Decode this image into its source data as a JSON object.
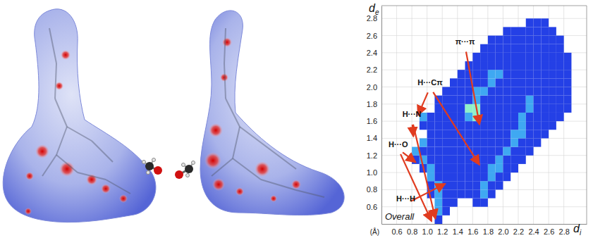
{
  "chart_data": {
    "type": "heatmap",
    "title": "Overall",
    "xlabel": "di",
    "ylabel": "de",
    "unit": "(Å)",
    "xlim": [
      0.4,
      3.1
    ],
    "ylim": [
      0.4,
      2.95
    ],
    "xticks": [
      0.6,
      0.8,
      {
        "value": 1,
        "label": "1.0"
      },
      1.2,
      1.4,
      1.6,
      1.8,
      {
        "value": 2,
        "label": "2.0"
      },
      2.2,
      2.4,
      2.6,
      2.8
    ],
    "yticks": [
      0.6,
      0.8,
      {
        "value": 1,
        "label": "1.0"
      },
      1.2,
      1.4,
      1.6,
      1.8,
      {
        "value": 2,
        "label": "2.0"
      },
      2.2,
      2.4,
      2.6,
      2.8
    ],
    "grid": true,
    "tick_labels": true,
    "x_bins": [
      0.7,
      0.8,
      0.9,
      1.0,
      1.1,
      1.2,
      1.3,
      1.4,
      1.5,
      1.6,
      1.7,
      1.8,
      1.9,
      2.0,
      2.1,
      2.2,
      2.3,
      2.4,
      2.5,
      2.6,
      2.7,
      2.8,
      2.9
    ],
    "y_bins": [
      0.4,
      0.5,
      0.6,
      0.7,
      0.8,
      0.9,
      1.0,
      1.1,
      1.2,
      1.3,
      1.4,
      1.5,
      1.6,
      1.7,
      1.8,
      1.9,
      2.0,
      2.1,
      2.2,
      2.3,
      2.4,
      2.5,
      2.6,
      2.7,
      2.8
    ],
    "cells": [
      [
        0,
        0,
        0,
        0,
        1,
        0,
        0,
        0,
        0,
        0,
        0,
        0,
        0,
        0,
        0,
        0,
        0,
        0,
        0,
        0,
        0,
        0
      ],
      [
        0,
        0,
        0,
        0,
        2,
        1,
        0,
        0,
        0,
        0,
        0,
        0,
        0,
        0,
        0,
        0,
        0,
        0,
        0,
        0,
        0,
        0
      ],
      [
        0,
        0,
        0,
        0,
        2,
        1,
        1,
        0,
        0,
        1,
        1,
        0,
        0,
        0,
        0,
        0,
        0,
        0,
        0,
        0,
        0,
        0
      ],
      [
        0,
        0,
        0,
        1,
        2,
        1,
        1,
        1,
        1,
        1,
        2,
        1,
        0,
        0,
        0,
        0,
        0,
        0,
        0,
        0,
        0,
        0
      ],
      [
        0,
        0,
        0,
        1,
        2,
        1,
        1,
        1,
        1,
        1,
        2,
        1,
        1,
        0,
        0,
        0,
        0,
        0,
        0,
        0,
        0,
        0
      ],
      [
        0,
        0,
        0,
        2,
        1,
        1,
        1,
        1,
        1,
        1,
        1,
        2,
        1,
        1,
        0,
        0,
        0,
        0,
        0,
        0,
        0,
        0
      ],
      [
        0,
        0,
        1,
        2,
        1,
        1,
        1,
        1,
        1,
        1,
        1,
        2,
        2,
        1,
        1,
        0,
        0,
        0,
        0,
        0,
        0,
        0
      ],
      [
        0,
        1,
        2,
        1,
        1,
        1,
        1,
        1,
        1,
        1,
        1,
        1,
        2,
        1,
        1,
        1,
        0,
        0,
        0,
        0,
        0,
        0
      ],
      [
        0,
        2,
        1,
        1,
        1,
        1,
        1,
        1,
        1,
        1,
        1,
        1,
        1,
        2,
        1,
        1,
        1,
        0,
        0,
        0,
        0,
        0
      ],
      [
        0,
        0,
        2,
        1,
        1,
        1,
        1,
        1,
        1,
        1,
        1,
        1,
        1,
        1,
        2,
        1,
        1,
        1,
        0,
        0,
        0,
        0
      ],
      [
        0,
        0,
        0,
        1,
        1,
        1,
        1,
        1,
        1,
        1,
        1,
        1,
        1,
        1,
        2,
        2,
        1,
        1,
        1,
        0,
        0,
        0
      ],
      [
        0,
        0,
        1,
        1,
        1,
        1,
        1,
        1,
        1,
        1,
        1,
        1,
        1,
        1,
        1,
        2,
        1,
        1,
        1,
        1,
        0,
        0
      ],
      [
        0,
        0,
        2,
        1,
        1,
        1,
        1,
        1,
        2,
        3,
        1,
        1,
        1,
        1,
        1,
        2,
        1,
        1,
        1,
        1,
        1,
        0
      ],
      [
        0,
        0,
        0,
        0,
        1,
        1,
        1,
        1,
        3,
        3,
        1,
        1,
        1,
        1,
        1,
        1,
        2,
        1,
        1,
        1,
        1,
        1
      ],
      [
        0,
        0,
        0,
        0,
        1,
        1,
        1,
        1,
        1,
        2,
        1,
        1,
        1,
        1,
        1,
        1,
        2,
        1,
        1,
        1,
        1,
        1
      ],
      [
        0,
        0,
        0,
        0,
        0,
        1,
        1,
        1,
        1,
        2,
        2,
        1,
        1,
        1,
        1,
        1,
        1,
        1,
        1,
        1,
        1,
        1
      ],
      [
        0,
        0,
        0,
        0,
        0,
        0,
        1,
        1,
        1,
        1,
        1,
        2,
        1,
        1,
        1,
        1,
        1,
        1,
        1,
        1,
        1,
        1
      ],
      [
        0,
        0,
        0,
        0,
        0,
        0,
        0,
        1,
        1,
        1,
        1,
        2,
        2,
        1,
        1,
        1,
        1,
        1,
        1,
        1,
        1,
        1
      ],
      [
        0,
        0,
        0,
        0,
        0,
        0,
        0,
        0,
        1,
        1,
        1,
        1,
        1,
        1,
        1,
        1,
        1,
        1,
        1,
        1,
        1,
        1
      ],
      [
        0,
        0,
        0,
        0,
        0,
        0,
        0,
        0,
        0,
        1,
        1,
        1,
        1,
        1,
        1,
        1,
        1,
        1,
        1,
        1,
        1,
        1
      ],
      [
        0,
        0,
        0,
        0,
        0,
        0,
        0,
        0,
        0,
        0,
        1,
        1,
        1,
        1,
        1,
        1,
        1,
        1,
        1,
        1,
        1,
        0
      ],
      [
        0,
        0,
        0,
        0,
        0,
        0,
        0,
        0,
        0,
        0,
        0,
        1,
        1,
        1,
        1,
        1,
        1,
        1,
        1,
        1,
        1,
        0
      ],
      [
        0,
        0,
        0,
        0,
        0,
        0,
        0,
        0,
        0,
        0,
        0,
        0,
        0,
        1,
        1,
        1,
        1,
        1,
        1,
        1,
        0,
        0
      ],
      [
        0,
        0,
        0,
        0,
        0,
        0,
        0,
        0,
        0,
        0,
        0,
        0,
        0,
        0,
        0,
        0,
        1,
        1,
        1,
        0,
        0,
        0
      ]
    ],
    "annotations": [
      {
        "text": "π···π",
        "x": 1.5,
        "y": 2.5,
        "targets": [
          [
            1.69,
            1.56
          ]
        ]
      },
      {
        "text": "H···Cπ",
        "x": 1.04,
        "y": 2.02,
        "targets": [
          [
            0.88,
            1.67
          ],
          [
            1.69,
            1.09
          ]
        ]
      },
      {
        "text": "H···N",
        "x": 0.8,
        "y": 1.65,
        "targets": [
          [
            0.82,
            1.42
          ],
          [
            1.11,
            0.46
          ]
        ]
      },
      {
        "text": "H···O",
        "x": 0.62,
        "y": 1.3,
        "targets": [
          [
            0.85,
            1.12
          ],
          [
            1.06,
            0.43
          ]
        ]
      },
      {
        "text": "H···H",
        "x": 0.72,
        "y": 0.66,
        "targets": [
          [
            1.24,
            0.87
          ]
        ]
      }
    ]
  }
}
